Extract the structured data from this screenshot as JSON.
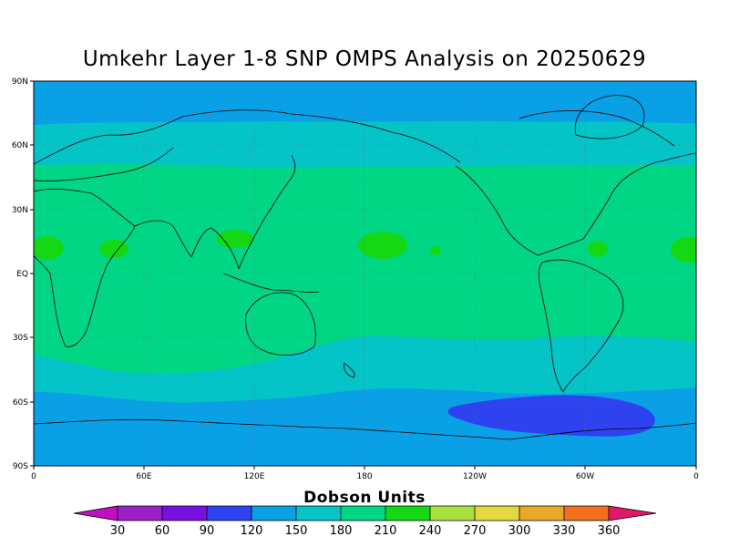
{
  "title": "Umkehr Layer 1-8 SNP OMPS Analysis on 20250629",
  "map": {
    "lat_ticks": [
      "90N",
      "60N",
      "30N",
      "EQ",
      "30S",
      "60S",
      "90S"
    ],
    "lon_ticks": [
      "0",
      "60E",
      "120E",
      "180",
      "120W",
      "60W",
      "0"
    ],
    "colors": {
      "c30": "#9b20c8",
      "c60": "#7a10e0",
      "c90": "#2e42f0",
      "c120": "#0aa0e6",
      "c150": "#04c4c8",
      "c180": "#00d683",
      "c210": "#14d814",
      "c240": "#a8e040",
      "c270": "#e4d840",
      "c300": "#e8a828",
      "c330": "#f07020",
      "c360": "#f00010",
      "over": "#e0186a",
      "under": "#c010c0"
    }
  },
  "colorbar": {
    "label": "Dobson Units",
    "levels": [
      "30",
      "60",
      "90",
      "120",
      "150",
      "180",
      "210",
      "240",
      "270",
      "300",
      "330",
      "360"
    ]
  }
}
